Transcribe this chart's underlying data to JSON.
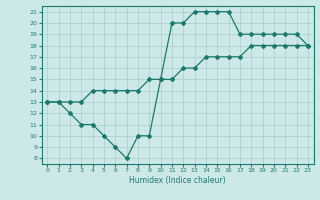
{
  "xlabel": "Humidex (Indice chaleur)",
  "bg_color": "#cce8e8",
  "line_color": "#1a7a6e",
  "grid_color": "#aacccc",
  "xlim": [
    -0.5,
    23.5
  ],
  "ylim": [
    7.5,
    21.5
  ],
  "xticks": [
    0,
    1,
    2,
    3,
    4,
    5,
    6,
    7,
    8,
    9,
    10,
    11,
    12,
    13,
    14,
    15,
    16,
    17,
    18,
    19,
    20,
    21,
    22,
    23
  ],
  "yticks": [
    8,
    9,
    10,
    11,
    12,
    13,
    14,
    15,
    16,
    17,
    18,
    19,
    20,
    21
  ],
  "wavy_x": [
    0,
    1,
    2,
    3,
    4,
    5,
    6,
    7,
    8,
    9,
    10,
    11,
    12,
    13,
    14,
    15,
    16,
    17,
    18,
    19,
    20,
    21,
    22,
    23
  ],
  "wavy_y": [
    13,
    13,
    12,
    11,
    11,
    10,
    9,
    8,
    10,
    10,
    15,
    20,
    20,
    21,
    21,
    21,
    21,
    19,
    19,
    19,
    19,
    19,
    19,
    18
  ],
  "diag_x": [
    0,
    1,
    2,
    3,
    4,
    5,
    6,
    7,
    8,
    9,
    10,
    11,
    12,
    13,
    14,
    15,
    16,
    17,
    18,
    19,
    20,
    21,
    22,
    23
  ],
  "diag_y": [
    13,
    13,
    13,
    13,
    14,
    14,
    14,
    14,
    14,
    15,
    15,
    15,
    16,
    16,
    17,
    17,
    17,
    17,
    18,
    18,
    18,
    18,
    18,
    18
  ]
}
